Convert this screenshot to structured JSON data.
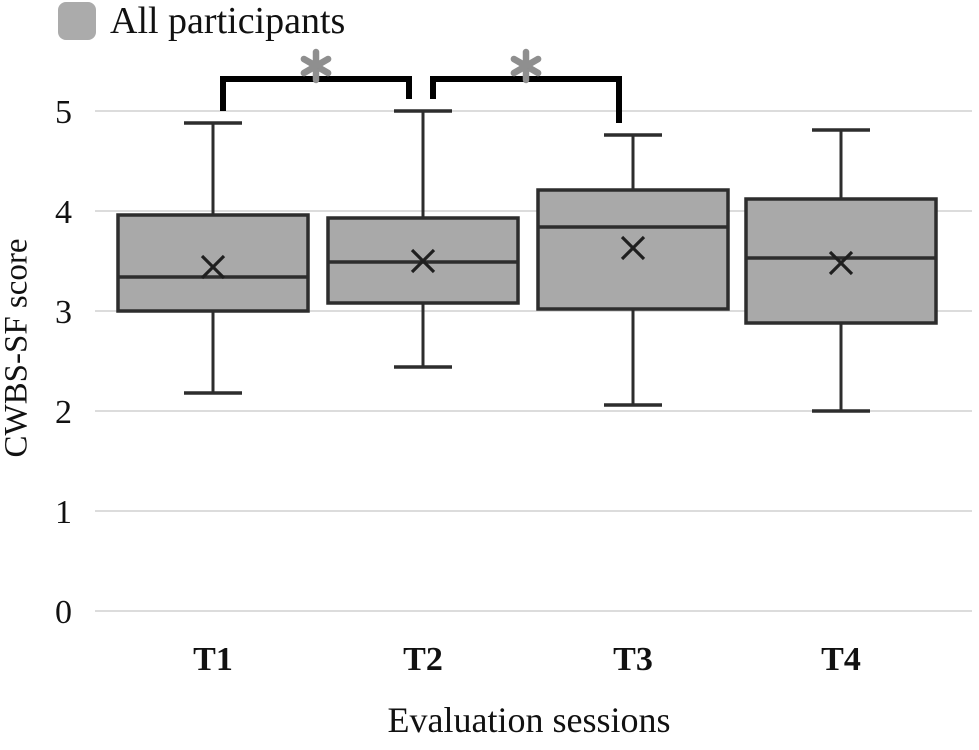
{
  "legend": {
    "label": "All participants",
    "swatch_color": "#ababab"
  },
  "y_axis": {
    "title": "CWBS-SF score"
  },
  "x_axis": {
    "title": "Evaluation sessions"
  },
  "colors": {
    "box_fill": "#a9a9a9",
    "box_stroke": "#2d2d2d",
    "whisker": "#2d2d2d",
    "gridline": "#dcdcdc",
    "bracket": "#000000",
    "asterisk": "#8f8f8f",
    "text": "#111111"
  },
  "chart_data": {
    "type": "boxplot",
    "title": "",
    "xlabel": "Evaluation sessions",
    "ylabel": "CWBS-SF score",
    "ylim": [
      0,
      5
    ],
    "yticks": [
      5,
      4,
      3,
      2,
      1,
      0
    ],
    "grid": true,
    "legend_position": "top-left",
    "categories": [
      "T1",
      "T2",
      "T3",
      "T4"
    ],
    "series": [
      {
        "name": "All participants",
        "boxes": [
          {
            "category": "T1",
            "min": 2.18,
            "q1": 3.0,
            "median": 3.34,
            "mean": 3.44,
            "q3": 3.96,
            "max": 4.88
          },
          {
            "category": "T2",
            "min": 2.44,
            "q1": 3.08,
            "median": 3.49,
            "mean": 3.5,
            "q3": 3.93,
            "max": 5.0
          },
          {
            "category": "T3",
            "min": 2.06,
            "q1": 3.02,
            "median": 3.84,
            "mean": 3.63,
            "q3": 4.21,
            "max": 4.76
          },
          {
            "category": "T4",
            "min": 2.0,
            "q1": 2.88,
            "median": 3.53,
            "mean": 3.48,
            "q3": 4.12,
            "max": 4.81
          }
        ]
      }
    ],
    "annotations": [
      {
        "type": "significance-bracket",
        "from": "T1",
        "to": "T2",
        "label": "*"
      },
      {
        "type": "significance-bracket",
        "from": "T2",
        "to": "T3",
        "label": "*"
      }
    ]
  }
}
